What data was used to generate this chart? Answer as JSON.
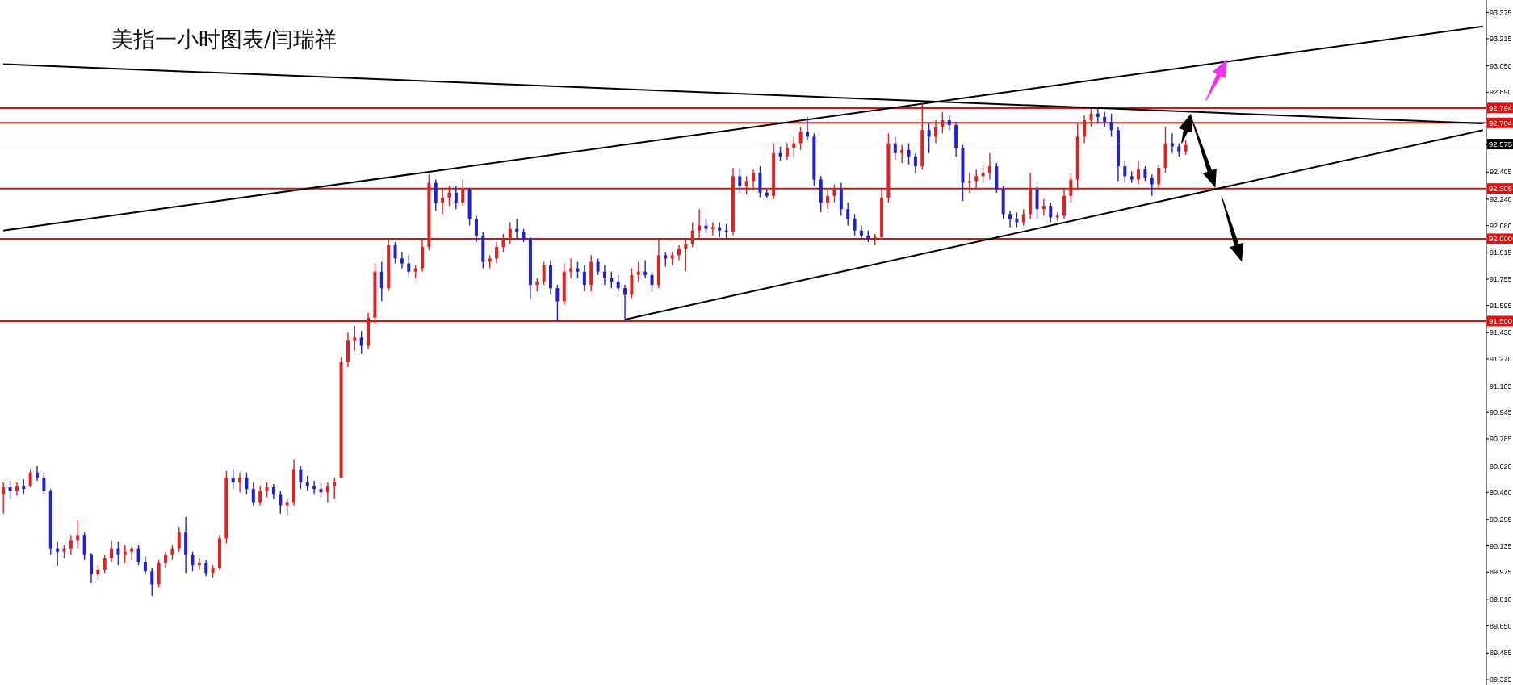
{
  "chart_data": {
    "type": "candlestick",
    "title": "美指一小时图表/闫瑞祥",
    "categories": [
      null,
      null,
      null,
      null,
      null,
      null,
      null,
      null,
      null,
      null,
      null,
      null,
      null,
      null,
      null,
      null,
      null,
      null,
      null,
      null,
      null,
      null,
      null,
      null,
      null,
      null,
      null,
      null,
      null,
      null,
      null,
      null,
      null,
      null,
      null,
      null,
      null,
      null,
      null,
      null,
      null,
      null,
      null,
      null,
      null,
      null,
      null,
      null,
      null,
      null,
      null,
      null,
      null,
      null,
      null,
      null,
      null,
      null,
      null,
      null,
      null,
      null,
      null,
      null,
      null,
      null,
      null,
      null,
      null,
      null,
      null,
      null,
      null,
      null,
      null,
      null,
      null,
      null,
      null,
      null,
      null,
      null,
      null,
      null,
      null,
      null,
      null,
      null,
      null,
      null,
      null,
      null,
      null,
      null,
      null,
      null,
      null,
      null,
      null,
      null,
      null,
      null,
      null,
      null,
      null,
      null,
      null,
      null,
      null,
      null,
      null,
      null,
      null,
      null,
      null,
      null,
      null,
      null,
      null,
      null,
      null,
      null,
      null,
      null,
      null,
      null,
      null,
      null,
      null,
      null,
      null,
      null,
      null,
      null,
      null,
      null,
      null,
      null,
      null,
      null,
      null,
      null,
      null,
      null,
      null,
      null,
      null,
      null,
      null,
      null,
      null,
      null,
      null,
      null,
      null,
      null,
      null,
      null,
      null,
      null,
      null,
      null,
      null,
      null,
      null,
      null,
      null,
      null,
      null,
      null,
      null,
      null,
      null,
      null,
      null,
      null,
      null,
      null,
      null,
      null,
      null,
      null,
      null,
      null,
      null,
      null,
      null,
      null,
      null,
      null,
      null,
      null,
      null,
      null,
      null,
      null,
      null,
      null,
      null,
      null,
      null,
      null,
      null,
      null,
      null,
      null,
      null,
      null,
      null,
      null,
      null,
      null,
      null,
      null,
      null,
      null,
      null,
      null,
      null,
      null
    ],
    "ohlc": [
      [
        90.45,
        90.52,
        90.33,
        90.49
      ],
      [
        90.49,
        90.53,
        90.42,
        90.47
      ],
      [
        90.47,
        90.52,
        90.44,
        90.5
      ],
      [
        90.5,
        90.54,
        90.45,
        90.48
      ],
      [
        90.5,
        90.6,
        90.49,
        90.58
      ],
      [
        90.58,
        90.62,
        90.53,
        90.55
      ],
      [
        90.55,
        90.58,
        90.45,
        90.47
      ],
      [
        90.47,
        90.48,
        90.08,
        90.12
      ],
      [
        90.12,
        90.16,
        90.01,
        90.1
      ],
      [
        90.1,
        90.14,
        90.06,
        90.12
      ],
      [
        90.12,
        90.2,
        90.08,
        90.17
      ],
      [
        90.17,
        90.29,
        90.12,
        90.2
      ],
      [
        90.2,
        90.22,
        90.05,
        90.08
      ],
      [
        90.08,
        90.09,
        89.91,
        89.96
      ],
      [
        89.96,
        90.02,
        89.93,
        89.99
      ],
      [
        89.99,
        90.08,
        89.97,
        90.06
      ],
      [
        90.06,
        90.17,
        90.04,
        90.12
      ],
      [
        90.12,
        90.16,
        90.02,
        90.08
      ],
      [
        90.08,
        90.14,
        90.03,
        90.1
      ],
      [
        90.1,
        90.13,
        90.05,
        90.12
      ],
      [
        90.12,
        90.14,
        90.02,
        90.04
      ],
      [
        90.04,
        90.07,
        89.96,
        89.98
      ],
      [
        89.98,
        90.0,
        89.83,
        89.9
      ],
      [
        89.9,
        90.05,
        89.88,
        90.03
      ],
      [
        90.03,
        90.1,
        90.0,
        90.08
      ],
      [
        90.08,
        90.14,
        90.05,
        90.12
      ],
      [
        90.12,
        90.25,
        90.1,
        90.22
      ],
      [
        90.22,
        90.31,
        89.97,
        90.08
      ],
      [
        90.08,
        90.1,
        89.98,
        90.02
      ],
      [
        90.02,
        90.06,
        89.99,
        90.03
      ],
      [
        90.03,
        90.05,
        89.95,
        89.97
      ],
      [
        89.97,
        90.02,
        89.94,
        90.0
      ],
      [
        90.0,
        90.2,
        89.99,
        90.18
      ],
      [
        90.18,
        90.59,
        90.15,
        90.55
      ],
      [
        90.55,
        90.6,
        90.48,
        90.52
      ],
      [
        90.52,
        90.58,
        90.46,
        90.55
      ],
      [
        90.55,
        90.58,
        90.45,
        90.48
      ],
      [
        90.48,
        90.52,
        90.38,
        90.4
      ],
      [
        90.4,
        90.5,
        90.38,
        90.47
      ],
      [
        90.47,
        90.52,
        90.43,
        90.49
      ],
      [
        90.49,
        90.51,
        90.42,
        90.45
      ],
      [
        90.45,
        90.47,
        90.33,
        90.38
      ],
      [
        90.38,
        90.42,
        90.32,
        90.4
      ],
      [
        90.4,
        90.66,
        90.38,
        90.6
      ],
      [
        90.6,
        90.62,
        90.48,
        90.52
      ],
      [
        90.52,
        90.56,
        90.47,
        90.5
      ],
      [
        90.5,
        90.53,
        90.45,
        90.48
      ],
      [
        90.48,
        90.52,
        90.43,
        90.46
      ],
      [
        90.46,
        90.52,
        90.4,
        90.5
      ],
      [
        90.5,
        90.55,
        90.42,
        90.52
      ],
      [
        90.55,
        91.28,
        90.55,
        91.25
      ],
      [
        91.25,
        91.43,
        91.22,
        91.38
      ],
      [
        91.38,
        91.47,
        91.32,
        91.4
      ],
      [
        91.4,
        91.44,
        91.3,
        91.35
      ],
      [
        91.35,
        91.55,
        91.33,
        91.52
      ],
      [
        91.52,
        91.85,
        91.48,
        91.8
      ],
      [
        91.8,
        91.86,
        91.62,
        91.7
      ],
      [
        91.7,
        92.0,
        91.68,
        91.96
      ],
      [
        91.96,
        91.98,
        91.85,
        91.88
      ],
      [
        91.88,
        91.92,
        91.82,
        91.85
      ],
      [
        91.85,
        91.9,
        91.78,
        91.8
      ],
      [
        91.8,
        91.84,
        91.76,
        91.82
      ],
      [
        91.82,
        92.0,
        91.8,
        91.95
      ],
      [
        91.95,
        92.39,
        91.93,
        92.34
      ],
      [
        92.34,
        92.36,
        92.17,
        92.22
      ],
      [
        92.22,
        92.3,
        92.15,
        92.25
      ],
      [
        92.25,
        92.32,
        92.2,
        92.28
      ],
      [
        92.28,
        92.32,
        92.18,
        92.22
      ],
      [
        92.22,
        92.36,
        92.2,
        92.3
      ],
      [
        92.3,
        92.31,
        92.08,
        92.12
      ],
      [
        92.12,
        92.14,
        91.98,
        92.02
      ],
      [
        92.02,
        92.04,
        91.82,
        91.86
      ],
      [
        91.86,
        91.9,
        91.82,
        91.88
      ],
      [
        91.88,
        91.98,
        91.85,
        91.95
      ],
      [
        91.95,
        92.03,
        91.92,
        92.0
      ],
      [
        92.0,
        92.1,
        91.97,
        92.06
      ],
      [
        92.06,
        92.12,
        92.0,
        92.04
      ],
      [
        92.04,
        92.06,
        91.98,
        92.0
      ],
      [
        92.0,
        92.01,
        91.63,
        91.72
      ],
      [
        91.72,
        91.76,
        91.68,
        91.74
      ],
      [
        91.74,
        91.86,
        91.72,
        91.84
      ],
      [
        91.84,
        91.87,
        91.66,
        91.7
      ],
      [
        91.7,
        91.72,
        91.5,
        91.62
      ],
      [
        91.62,
        91.85,
        91.6,
        91.8
      ],
      [
        91.8,
        91.88,
        91.76,
        91.82
      ],
      [
        91.82,
        91.86,
        91.76,
        91.8
      ],
      [
        91.8,
        91.84,
        91.68,
        91.72
      ],
      [
        91.72,
        91.9,
        91.68,
        91.86
      ],
      [
        91.86,
        91.88,
        91.78,
        91.8
      ],
      [
        91.8,
        91.84,
        91.72,
        91.76
      ],
      [
        91.76,
        91.8,
        91.7,
        91.74
      ],
      [
        91.74,
        91.78,
        91.68,
        91.7
      ],
      [
        91.7,
        91.72,
        91.51,
        91.66
      ],
      [
        91.66,
        91.82,
        91.64,
        91.78
      ],
      [
        91.78,
        91.86,
        91.74,
        91.8
      ],
      [
        91.8,
        91.87,
        91.76,
        91.78
      ],
      [
        91.78,
        91.8,
        91.68,
        91.72
      ],
      [
        91.72,
        92.0,
        91.7,
        91.9
      ],
      [
        91.9,
        91.92,
        91.83,
        91.88
      ],
      [
        91.88,
        91.92,
        91.84,
        91.9
      ],
      [
        91.9,
        91.96,
        91.87,
        91.94
      ],
      [
        91.94,
        92.0,
        91.8,
        91.97
      ],
      [
        91.97,
        92.1,
        91.95,
        92.05
      ],
      [
        92.05,
        92.18,
        92.0,
        92.08
      ],
      [
        92.08,
        92.12,
        92.03,
        92.06
      ],
      [
        92.06,
        92.1,
        92.02,
        92.07
      ],
      [
        92.07,
        92.1,
        92.01,
        92.05
      ],
      [
        92.05,
        92.09,
        92.0,
        92.04
      ],
      [
        92.04,
        92.43,
        92.02,
        92.38
      ],
      [
        92.38,
        92.43,
        92.28,
        92.32
      ],
      [
        92.32,
        92.38,
        92.27,
        92.35
      ],
      [
        92.35,
        92.42,
        92.3,
        92.4
      ],
      [
        92.4,
        92.44,
        92.25,
        92.28
      ],
      [
        92.28,
        92.3,
        92.25,
        92.26
      ],
      [
        92.26,
        92.58,
        92.24,
        92.52
      ],
      [
        92.52,
        92.56,
        92.47,
        92.5
      ],
      [
        92.5,
        92.58,
        92.48,
        92.55
      ],
      [
        92.55,
        92.62,
        92.5,
        92.58
      ],
      [
        92.58,
        92.68,
        92.54,
        92.65
      ],
      [
        92.65,
        92.74,
        92.6,
        92.62
      ],
      [
        92.62,
        92.64,
        92.32,
        92.36
      ],
      [
        92.36,
        92.38,
        92.16,
        92.22
      ],
      [
        92.22,
        92.3,
        92.18,
        92.26
      ],
      [
        92.26,
        92.33,
        92.22,
        92.3
      ],
      [
        92.3,
        92.34,
        92.14,
        92.18
      ],
      [
        92.18,
        92.22,
        92.08,
        92.12
      ],
      [
        92.12,
        92.15,
        92.02,
        92.05
      ],
      [
        92.05,
        92.08,
        91.99,
        92.02
      ],
      [
        92.02,
        92.05,
        91.98,
        92.0
      ],
      [
        92.0,
        92.03,
        91.96,
        92.01
      ],
      [
        92.01,
        92.3,
        91.99,
        92.25
      ],
      [
        92.25,
        92.64,
        92.22,
        92.58
      ],
      [
        92.58,
        92.62,
        92.48,
        92.52
      ],
      [
        92.52,
        92.57,
        92.46,
        92.54
      ],
      [
        92.54,
        92.58,
        92.45,
        92.5
      ],
      [
        92.5,
        92.52,
        92.4,
        92.44
      ],
      [
        92.44,
        92.83,
        92.42,
        92.66
      ],
      [
        92.66,
        92.7,
        92.52,
        92.62
      ],
      [
        92.62,
        92.72,
        92.58,
        92.68
      ],
      [
        92.68,
        92.77,
        92.64,
        92.72
      ],
      [
        92.72,
        92.75,
        92.66,
        92.69
      ],
      [
        92.69,
        92.71,
        92.5,
        92.55
      ],
      [
        92.55,
        92.57,
        92.23,
        92.34
      ],
      [
        92.34,
        92.4,
        92.28,
        92.35
      ],
      [
        92.35,
        92.42,
        92.3,
        92.38
      ],
      [
        92.38,
        92.45,
        92.34,
        92.4
      ],
      [
        92.4,
        92.52,
        92.36,
        92.44
      ],
      [
        92.44,
        92.46,
        92.28,
        92.3
      ],
      [
        92.3,
        92.32,
        92.12,
        92.15
      ],
      [
        92.15,
        92.17,
        92.07,
        92.12
      ],
      [
        92.12,
        92.16,
        92.07,
        92.1
      ],
      [
        92.1,
        92.18,
        92.08,
        92.15
      ],
      [
        92.15,
        92.4,
        92.12,
        92.3
      ],
      [
        92.3,
        92.32,
        92.12,
        92.18
      ],
      [
        92.18,
        92.24,
        92.14,
        92.2
      ],
      [
        92.2,
        92.22,
        92.1,
        92.13
      ],
      [
        92.13,
        92.16,
        92.11,
        92.14
      ],
      [
        92.14,
        92.3,
        92.12,
        92.26
      ],
      [
        92.26,
        92.4,
        92.22,
        92.36
      ],
      [
        92.36,
        92.7,
        92.3,
        92.62
      ],
      [
        92.62,
        92.75,
        92.58,
        92.72
      ],
      [
        92.72,
        92.79,
        92.68,
        92.76
      ],
      [
        92.76,
        92.79,
        92.7,
        92.74
      ],
      [
        92.74,
        92.77,
        92.68,
        92.71
      ],
      [
        92.71,
        92.76,
        92.62,
        92.66
      ],
      [
        92.66,
        92.68,
        92.35,
        92.44
      ],
      [
        92.44,
        92.47,
        92.34,
        92.38
      ],
      [
        92.38,
        92.41,
        92.34,
        92.36
      ],
      [
        92.36,
        92.47,
        92.33,
        92.42
      ],
      [
        92.42,
        92.44,
        92.35,
        92.37
      ],
      [
        92.37,
        92.39,
        92.26,
        92.33
      ],
      [
        92.33,
        92.45,
        92.31,
        92.43
      ],
      [
        92.43,
        92.68,
        92.4,
        92.58
      ],
      [
        92.58,
        92.64,
        92.52,
        92.56
      ],
      [
        92.56,
        92.58,
        92.5,
        92.53
      ],
      [
        92.53,
        92.6,
        92.51,
        92.57
      ],
      null,
      null,
      null,
      null,
      null,
      null,
      null,
      null,
      null,
      null,
      null,
      null,
      null,
      null,
      null,
      null,
      null,
      null,
      null,
      null,
      null,
      null,
      null,
      null,
      null,
      null,
      null,
      null,
      null,
      null,
      null,
      null,
      null,
      null,
      null,
      null,
      null,
      null,
      null,
      null,
      null,
      null,
      null,
      null
    ],
    "colors": [
      "#dd2222",
      "#2222cc",
      "#dd2222",
      "#2222cc",
      "#dd2222",
      "#2222cc",
      "#2222cc",
      "#2222cc",
      "#2222cc",
      "#dd2222",
      "#dd2222",
      "#dd2222",
      "#2222cc",
      "#2222cc",
      "#dd2222",
      "#dd2222",
      "#dd2222",
      "#2222cc",
      "#dd2222",
      "#dd2222",
      "#2222cc",
      "#2222cc",
      "#2222cc",
      "#dd2222",
      "#dd2222",
      "#dd2222",
      "#dd2222",
      "#2222cc",
      "#2222cc",
      "#dd2222",
      "#2222cc",
      "#dd2222",
      "#dd2222",
      "#dd2222",
      "#2222cc",
      "#dd2222",
      "#2222cc",
      "#2222cc",
      "#dd2222",
      "#dd2222",
      "#2222cc",
      "#2222cc",
      "#dd2222",
      "#dd2222",
      "#2222cc",
      "#2222cc",
      "#2222cc",
      "#2222cc",
      "#dd2222",
      "#dd2222",
      "#dd2222",
      "#dd2222",
      "#dd2222",
      "#2222cc",
      "#dd2222",
      "#dd2222",
      "#2222cc",
      "#dd2222",
      "#2222cc",
      "#2222cc",
      "#2222cc",
      "#dd2222",
      "#dd2222",
      "#dd2222",
      "#2222cc",
      "#dd2222",
      "#dd2222",
      "#2222cc",
      "#dd2222",
      "#2222cc",
      "#2222cc",
      "#2222cc",
      "#dd2222",
      "#dd2222",
      "#dd2222",
      "#dd2222",
      "#2222cc",
      "#2222cc",
      "#2222cc",
      "#dd2222",
      "#dd2222",
      "#2222cc",
      "#2222cc",
      "#dd2222",
      "#dd2222",
      "#2222cc",
      "#2222cc",
      "#dd2222",
      "#2222cc",
      "#2222cc",
      "#2222cc",
      "#2222cc",
      "#2222cc",
      "#dd2222",
      "#dd2222",
      "#2222cc",
      "#2222cc",
      "#dd2222",
      "#2222cc",
      "#dd2222",
      "#dd2222",
      "#dd2222",
      "#dd2222",
      "#dd2222",
      "#2222cc",
      "#dd2222",
      "#2222cc",
      "#2222cc",
      "#dd2222",
      "#2222cc",
      "#dd2222",
      "#dd2222",
      "#2222cc",
      "#2222cc",
      "#dd2222",
      "#2222cc",
      "#dd2222",
      "#dd2222",
      "#dd2222",
      "#2222cc",
      "#2222cc",
      "#2222cc",
      "#dd2222",
      "#dd2222",
      "#2222cc",
      "#2222cc",
      "#2222cc",
      "#2222cc",
      "#2222cc",
      "#dd2222",
      "#dd2222",
      "#dd2222",
      "#2222cc",
      "#dd2222",
      "#2222cc",
      "#2222cc",
      "#dd2222",
      "#2222cc",
      "#dd2222",
      "#dd2222",
      "#2222cc",
      "#2222cc",
      "#2222cc",
      "#dd2222",
      "#dd2222",
      "#dd2222",
      "#dd2222",
      "#2222cc",
      "#2222cc",
      "#2222cc",
      "#2222cc",
      "#dd2222",
      "#dd2222",
      "#2222cc",
      "#dd2222",
      "#2222cc",
      "#dd2222",
      "#dd2222",
      "#dd2222",
      "#dd2222",
      "#dd2222",
      "#dd2222",
      "#2222cc",
      "#2222cc",
      "#2222cc",
      "#2222cc",
      "#2222cc",
      "#2222cc",
      "#dd2222",
      "#2222cc",
      "#2222cc",
      "#dd2222",
      "#dd2222",
      "#2222cc",
      "#2222cc",
      "#dd2222",
      null,
      null,
      null,
      null,
      null,
      null,
      null,
      null,
      null,
      null,
      null,
      null,
      null,
      null,
      null,
      null,
      null,
      null,
      null,
      null,
      null,
      null,
      null,
      null,
      null,
      null,
      null,
      null,
      null,
      null,
      null,
      null,
      null,
      null,
      null,
      null,
      null,
      null,
      null,
      null,
      null,
      null,
      null,
      null
    ],
    "ylim": [
      89.29,
      93.45
    ],
    "yticks": [
      {
        "value": 93.375,
        "label": "93.375"
      },
      {
        "value": 93.215,
        "label": "93.215"
      },
      {
        "value": 93.05,
        "label": "93.050"
      },
      {
        "value": 92.89,
        "label": "92.890"
      },
      {
        "value": 92.73,
        "label": null
      },
      {
        "value": 92.57,
        "label": null
      },
      {
        "value": 92.405,
        "label": "92.405"
      },
      {
        "value": 92.24,
        "label": "92.240"
      },
      {
        "value": 92.08,
        "label": "92.080"
      },
      {
        "value": 91.915,
        "label": "91.915"
      },
      {
        "value": 91.755,
        "label": "91.755"
      },
      {
        "value": 91.595,
        "label": "91.595"
      },
      {
        "value": 91.43,
        "label": "91.430"
      },
      {
        "value": 91.27,
        "label": "91.270"
      },
      {
        "value": 91.105,
        "label": "91.105"
      },
      {
        "value": 90.945,
        "label": "90.945"
      },
      {
        "value": 90.785,
        "label": "90.785"
      },
      {
        "value": 90.62,
        "label": "90.620"
      },
      {
        "value": 90.46,
        "label": "90.460"
      },
      {
        "value": 90.295,
        "label": "90.295"
      },
      {
        "value": 90.135,
        "label": "90.135"
      },
      {
        "value": 89.975,
        "label": "89.975"
      },
      {
        "value": 89.81,
        "label": "89.810"
      },
      {
        "value": 89.65,
        "label": "89.650"
      },
      {
        "value": 89.485,
        "label": "89.485"
      },
      {
        "value": 89.325,
        "label": "89.325"
      }
    ],
    "tick_labels": "y",
    "ref_lines": [
      {
        "axis": "y",
        "value": 92.794,
        "label": "92.794",
        "color": "#e01010"
      },
      {
        "axis": "y",
        "value": 92.704,
        "label": "92.704",
        "color": "#e01010"
      },
      {
        "axis": "y",
        "value": 92.575,
        "label": "92.575",
        "color": "#c0c0c0"
      },
      {
        "axis": "y",
        "value": 92.305,
        "label": "92.305",
        "color": "#e01010"
      },
      {
        "axis": "y",
        "value": 92.0,
        "label": "92.000",
        "color": "#e01010"
      },
      {
        "axis": "y",
        "value": 91.5,
        "label": "91.500",
        "color": "#e01010"
      }
    ],
    "series": [
      {
        "type": "line",
        "color": "#000000",
        "values": [
          92.05,
          null,
          null,
          null,
          null,
          null,
          null,
          null,
          null,
          null,
          null,
          null,
          null,
          null,
          null,
          null,
          null,
          null,
          null,
          null,
          null,
          null,
          null,
          null,
          null,
          null,
          null,
          null,
          null,
          null,
          null,
          null,
          null,
          null,
          null,
          null,
          null,
          null,
          null,
          null,
          null,
          null,
          null,
          null,
          null,
          null,
          null,
          null,
          null,
          null,
          null,
          null,
          null,
          null,
          null,
          null,
          null,
          null,
          null,
          null,
          null,
          null,
          null,
          null,
          null,
          null,
          null,
          null,
          null,
          null,
          null,
          null,
          null,
          null,
          null,
          null,
          null,
          null,
          null,
          null,
          null,
          null,
          null,
          null,
          null,
          null,
          null,
          null,
          null,
          null,
          null,
          null,
          null,
          null,
          null,
          null,
          null,
          null,
          null,
          null,
          null,
          null,
          null,
          null,
          null,
          null,
          null,
          null,
          null,
          null,
          null,
          null,
          null,
          null,
          null,
          null,
          null,
          null,
          null,
          null,
          null,
          null,
          null,
          null,
          null,
          null,
          null,
          null,
          null,
          null,
          null,
          null,
          null,
          null,
          null,
          null,
          null,
          null,
          null,
          null,
          null,
          null,
          null,
          null,
          null,
          null,
          null,
          null,
          null,
          null,
          null,
          null,
          null,
          null,
          null,
          null,
          null,
          null,
          null,
          null,
          null,
          null,
          null,
          null,
          null,
          null,
          null,
          null,
          null,
          null,
          null,
          null,
          null,
          null,
          null,
          null,
          null,
          null,
          null,
          null,
          null,
          null,
          null,
          null,
          null,
          null,
          null,
          null,
          null,
          null,
          null,
          null,
          null,
          null,
          null,
          null,
          null,
          null,
          null,
          null,
          null,
          null,
          null,
          null,
          null,
          null,
          null,
          null,
          null,
          null,
          null,
          null,
          null,
          null,
          null,
          null,
          null,
          null,
          null,
          93.29
        ]
      },
      {
        "type": "line",
        "color": "#000000",
        "values": [
          93.06,
          null,
          null,
          null,
          null,
          null,
          null,
          null,
          null,
          null,
          null,
          null,
          null,
          null,
          null,
          null,
          null,
          null,
          null,
          null,
          null,
          null,
          null,
          null,
          null,
          null,
          null,
          null,
          null,
          null,
          null,
          null,
          null,
          null,
          null,
          null,
          null,
          null,
          null,
          null,
          null,
          null,
          null,
          null,
          null,
          null,
          null,
          null,
          null,
          null,
          null,
          null,
          null,
          null,
          null,
          null,
          null,
          null,
          null,
          null,
          null,
          null,
          null,
          null,
          null,
          null,
          null,
          null,
          null,
          null,
          null,
          null,
          null,
          null,
          null,
          null,
          null,
          null,
          null,
          null,
          null,
          null,
          null,
          null,
          null,
          null,
          null,
          null,
          null,
          null,
          null,
          null,
          null,
          null,
          null,
          null,
          null,
          null,
          null,
          null,
          null,
          null,
          null,
          null,
          null,
          null,
          null,
          null,
          null,
          null,
          null,
          null,
          null,
          null,
          null,
          null,
          null,
          null,
          null,
          null,
          null,
          null,
          null,
          null,
          null,
          null,
          null,
          null,
          null,
          null,
          null,
          null,
          null,
          null,
          null,
          null,
          null,
          null,
          null,
          null,
          null,
          null,
          null,
          null,
          null,
          null,
          null,
          null,
          null,
          null,
          null,
          null,
          null,
          null,
          null,
          null,
          null,
          null,
          null,
          null,
          null,
          null,
          null,
          null,
          null,
          null,
          null,
          null,
          null,
          null,
          null,
          null,
          null,
          null,
          null,
          null,
          null,
          null,
          null,
          null,
          null,
          null,
          null,
          null,
          null,
          null,
          null,
          null,
          null,
          null,
          null,
          null,
          null,
          null,
          null,
          null,
          null,
          null,
          null,
          null,
          null,
          null,
          null,
          null,
          null,
          null,
          null,
          null,
          null,
          null,
          null,
          null,
          null,
          null,
          null,
          null,
          null,
          null,
          null,
          92.7
        ]
      },
      {
        "type": "line",
        "color": "#000000",
        "values": [
          null,
          null,
          null,
          null,
          null,
          null,
          null,
          null,
          null,
          null,
          null,
          null,
          null,
          null,
          null,
          null,
          null,
          null,
          null,
          null,
          null,
          null,
          null,
          null,
          null,
          null,
          null,
          null,
          null,
          null,
          null,
          null,
          null,
          null,
          null,
          null,
          null,
          null,
          null,
          null,
          null,
          null,
          null,
          null,
          null,
          null,
          null,
          null,
          null,
          null,
          null,
          null,
          null,
          null,
          null,
          null,
          null,
          null,
          null,
          null,
          null,
          null,
          null,
          null,
          null,
          null,
          null,
          null,
          null,
          null,
          null,
          null,
          null,
          null,
          null,
          null,
          null,
          null,
          null,
          null,
          null,
          null,
          null,
          null,
          null,
          null,
          null,
          null,
          null,
          null,
          null,
          null,
          91.51,
          null,
          null,
          null,
          null,
          null,
          null,
          null,
          null,
          null,
          null,
          null,
          null,
          null,
          null,
          null,
          null,
          null,
          null,
          null,
          null,
          null,
          null,
          null,
          null,
          null,
          null,
          null,
          null,
          null,
          null,
          null,
          null,
          null,
          null,
          null,
          null,
          null,
          null,
          null,
          null,
          null,
          null,
          null,
          null,
          null,
          null,
          null,
          null,
          null,
          null,
          null,
          null,
          null,
          null,
          null,
          null,
          null,
          null,
          null,
          null,
          null,
          null,
          null,
          null,
          null,
          null,
          null,
          null,
          null,
          null,
          null,
          null,
          null,
          null,
          null,
          null,
          null,
          null,
          null,
          null,
          null,
          null,
          null,
          null,
          null,
          null,
          null,
          null,
          null,
          null,
          null,
          null,
          null,
          null,
          null,
          null,
          null,
          null,
          null,
          null,
          null,
          null,
          null,
          null,
          null,
          null,
          null,
          null,
          null,
          null,
          null,
          null,
          null,
          null,
          null,
          null,
          null,
          null,
          null,
          null,
          null,
          null,
          null,
          null,
          null,
          null,
          92.66
        ]
      }
    ]
  }
}
